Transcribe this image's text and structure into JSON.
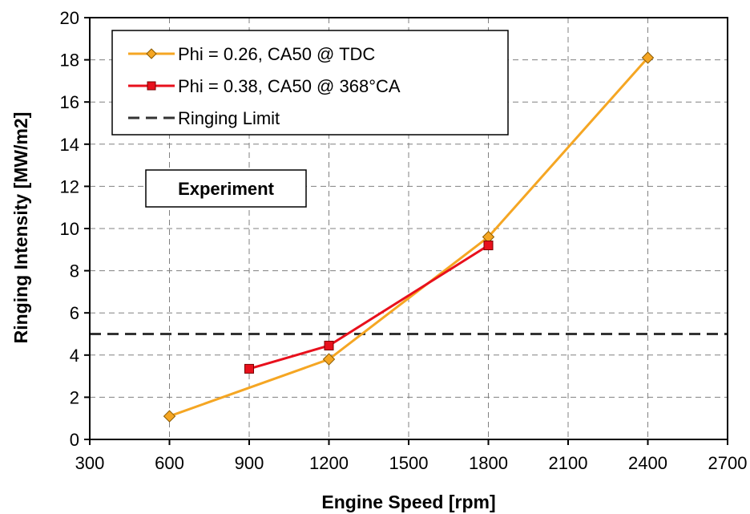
{
  "chart_data": {
    "type": "line",
    "xlabel": "Engine Speed [rpm]",
    "ylabel": "Ringing Intensity [MW/m2]",
    "xlim": [
      300,
      2700
    ],
    "ylim": [
      0,
      20
    ],
    "x_ticks": [
      300,
      600,
      900,
      1200,
      1500,
      1800,
      2100,
      2400,
      2700
    ],
    "y_ticks": [
      0,
      2,
      4,
      6,
      8,
      10,
      12,
      14,
      16,
      18,
      20
    ],
    "grid": true,
    "legend_position": "top-left",
    "series": [
      {
        "name": "Phi = 0.26, CA50 @ TDC",
        "color": "#f5a623",
        "marker": "diamond",
        "x": [
          600,
          1200,
          1800,
          2400
        ],
        "y": [
          1.1,
          3.8,
          9.6,
          18.1
        ]
      },
      {
        "name": "Phi = 0.38, CA50 @ 368°CA",
        "color": "#e8101c",
        "marker": "square",
        "x": [
          900,
          1200,
          1800
        ],
        "y": [
          3.35,
          4.45,
          9.2
        ]
      }
    ],
    "reference_lines": [
      {
        "name": "Ringing Limit",
        "y": 5,
        "color": "#333333",
        "style": "dashed"
      }
    ],
    "annotations": [
      {
        "text": "Experiment"
      }
    ]
  }
}
